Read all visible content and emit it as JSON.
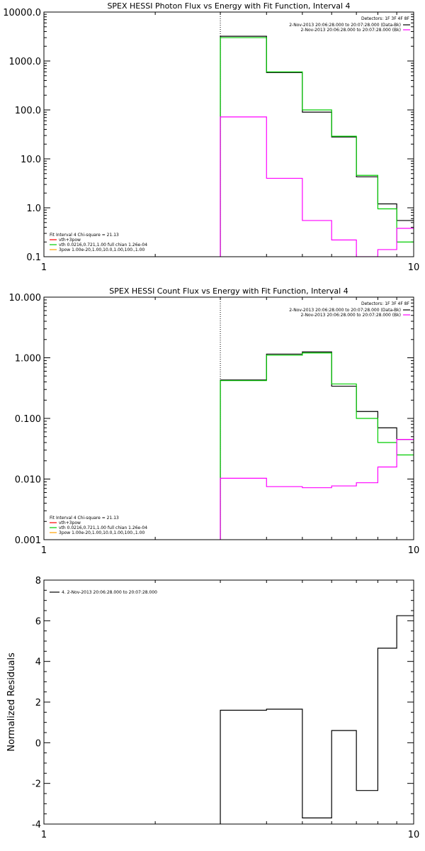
{
  "chart_data": [
    {
      "type": "line",
      "title": "SPEX HESSI Photon Flux vs Energy with Fit Function, Interval 4",
      "xscale": "log",
      "yscale": "log",
      "xlim": [
        1,
        10
      ],
      "ylim": [
        0.1,
        10000
      ],
      "xticks": [
        1,
        10
      ],
      "xtick_labels": [
        "1",
        "10"
      ],
      "yticks": [
        0.1,
        1,
        10,
        100,
        1000,
        10000
      ],
      "ytick_labels": [
        "0.1",
        "1.0",
        "10.0",
        "100.0",
        "1000.0",
        "10000.0"
      ],
      "vline": 3,
      "legend_top": {
        "header": "Detectors: 1F 3F 4F 8F",
        "entries": [
          {
            "text": "2-Nov-2013 20:06:28.000 to 20:07:28.000 (Data-Bk)",
            "color": "#000000"
          },
          {
            "text": "2-Nov-2013 20:06:28.000 to 20:07:28.000 (Bk)",
            "color": "#ff00ff"
          }
        ]
      },
      "legend_bottom": {
        "header": "Fit Interval 4   Chi-square = 21.13",
        "entries": [
          {
            "text": "vth+3pow",
            "color": "#ff0000"
          },
          {
            "text": "vth 0.0216,0.721,1.00  full chian 1.26e-04",
            "color": "#00cc00"
          },
          {
            "text": "3pow 1.00e-20,1.00,10.0,1.00,100.,1.00",
            "color": "#ffa000"
          }
        ]
      },
      "bin_edges": [
        3,
        4,
        5,
        6,
        7,
        8,
        9,
        10
      ],
      "series": [
        {
          "color": "#000000",
          "values": [
            3200,
            580,
            90,
            28,
            4.3,
            1.2,
            0.55
          ]
        },
        {
          "color": "#00cc00",
          "values": [
            3000,
            600,
            100,
            29,
            4.6,
            0.95,
            0.2
          ]
        },
        {
          "color": "#ff00ff",
          "values": [
            72,
            4.0,
            0.55,
            0.22,
            0.1,
            0.14,
            0.38
          ]
        }
      ]
    },
    {
      "type": "line",
      "title": "SPEX HESSI Count Flux vs Energy with Fit Function, Interval 4",
      "xscale": "log",
      "yscale": "log",
      "xlim": [
        1,
        10
      ],
      "ylim": [
        0.001,
        10
      ],
      "xticks": [
        1,
        10
      ],
      "xtick_labels": [
        "1",
        "10"
      ],
      "yticks": [
        0.001,
        0.01,
        0.1,
        1,
        10
      ],
      "ytick_labels": [
        "0.001",
        "0.010",
        "0.100",
        "1.000",
        "10.000"
      ],
      "vline": 3,
      "legend_top": {
        "header": "Detectors: 1F 3F 4F 8F",
        "entries": [
          {
            "text": "2-Nov-2013 20:06:28.000 to 20:07:28.000 (Data-Bk)",
            "color": "#000000"
          },
          {
            "text": "2-Nov-2013 20:06:28.000 to 20:07:28.000 (Bk)",
            "color": "#ff00ff"
          }
        ]
      },
      "legend_bottom": {
        "header": "Fit Interval 4   Chi-square = 21.13",
        "entries": [
          {
            "text": "vth+3pow",
            "color": "#ff0000"
          },
          {
            "text": "vth 0.0216,0.721,1.00  full chian 1.26e-04",
            "color": "#00cc00"
          },
          {
            "text": "3pow 1.00e-20,1.00,10.0,1.00,100.,1.00",
            "color": "#ffa000"
          }
        ]
      },
      "bin_edges": [
        3,
        4,
        5,
        6,
        7,
        8,
        9,
        10
      ],
      "series": [
        {
          "color": "#000000",
          "values": [
            0.43,
            1.15,
            1.25,
            0.34,
            0.13,
            0.07,
            0.045
          ]
        },
        {
          "color": "#00cc00",
          "values": [
            0.42,
            1.1,
            1.2,
            0.37,
            0.1,
            0.04,
            0.025
          ]
        },
        {
          "color": "#ff00ff",
          "values": [
            0.0103,
            0.0075,
            0.0072,
            0.0077,
            0.0087,
            0.0158,
            0.045
          ]
        }
      ]
    },
    {
      "type": "line",
      "title": "",
      "ylabel": "Normalized Residuals",
      "xscale": "log",
      "yscale": "linear",
      "xlim": [
        1,
        10
      ],
      "ylim": [
        -4,
        8
      ],
      "xticks": [
        1,
        10
      ],
      "xtick_labels": [
        "1",
        "10"
      ],
      "yticks": [
        -4,
        -2,
        0,
        2,
        4,
        6,
        8
      ],
      "ytick_labels": [
        "-4",
        "-2",
        "0",
        "2",
        "4",
        "6",
        "8"
      ],
      "legend_top_left": {
        "entries": [
          {
            "text": "4.  2-Nov-2013 20:06:28.000 to 20:07:28.000",
            "color": "#000000"
          }
        ]
      },
      "bin_edges": [
        3,
        4,
        5,
        6,
        7,
        8,
        9,
        10
      ],
      "series": [
        {
          "color": "#000000",
          "values": [
            1.6,
            1.65,
            -3.7,
            0.6,
            -2.35,
            4.65,
            6.25
          ]
        }
      ]
    }
  ]
}
